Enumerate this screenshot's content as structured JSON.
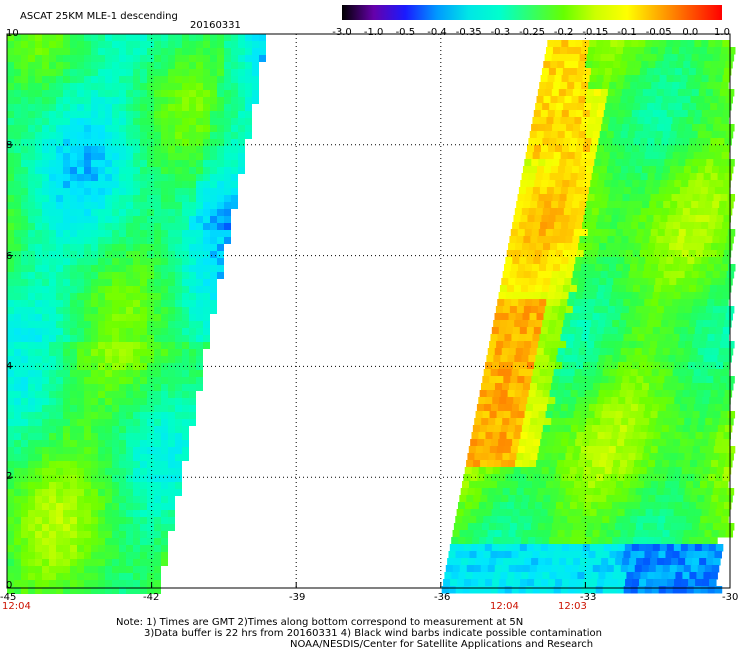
{
  "header": {
    "product": "ASCAT 25KM MLE-1 descending",
    "date": "20160331"
  },
  "colorbar": {
    "labels": [
      "-3.0",
      "-1.0",
      "-0.5",
      "-0.4",
      "-0.35",
      "-0.3",
      "-0.25",
      "-0.2",
      "-0.15",
      "-0.1",
      "-0.05",
      "0.0",
      "1.0"
    ],
    "colors": [
      "#000000",
      "#6600aa",
      "#1a1aff",
      "#0099ff",
      "#00e6e6",
      "#00ffcc",
      "#33ff66",
      "#66ff00",
      "#ccff00",
      "#ffff00",
      "#ffaa00",
      "#ff5500",
      "#ff0000"
    ]
  },
  "axes": {
    "x_ticks": [
      "-45",
      "-42",
      "-39",
      "-36",
      "-33",
      "-30"
    ],
    "y_ticks": [
      "0",
      "2",
      "4",
      "6",
      "8",
      "10"
    ],
    "x_range": [
      -45,
      -30
    ],
    "y_range": [
      0,
      10
    ],
    "grid": "dotted"
  },
  "pass_times": {
    "left": "12:04",
    "mid_a": "12:04",
    "mid_b": "12:03"
  },
  "notes": {
    "line1": "Note: 1) Times are GMT 2)Times along bottom correspond to measurement at 5N",
    "line2": "3)Data buffer is 22 hrs from 20160331 4) Black wind barbs indicate possible contamination",
    "line3": "NOAA/NESDIS/Center for Satellite Applications and Research"
  }
}
